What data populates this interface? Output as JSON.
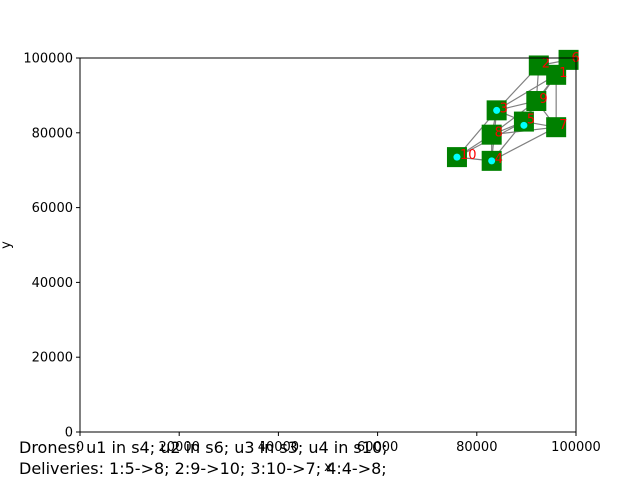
{
  "chart_data": {
    "type": "scatter",
    "xlabel": "x",
    "ylabel": "y",
    "xlim": [
      0,
      100000
    ],
    "ylim": [
      0,
      100000
    ],
    "xticks": [
      "0",
      "20000",
      "40000",
      "60000",
      "80000",
      "100000"
    ],
    "yticks": [
      "0",
      "20000",
      "40000",
      "60000",
      "80000",
      "100000"
    ],
    "grid": false,
    "colors": {
      "station": "#008000",
      "edge": "#808080",
      "drone": "#00ffff",
      "label_red": "#ff0000",
      "label_gray": "#808080",
      "marker_yellow": "#ffff00"
    },
    "stations": [
      {
        "x": 76000,
        "y": 73500,
        "label": "10"
      },
      {
        "x": 83000,
        "y": 72500,
        "label": "4"
      },
      {
        "x": 83000,
        "y": 79500,
        "label": "8"
      },
      {
        "x": 84000,
        "y": 86000,
        "label": "3"
      },
      {
        "x": 89500,
        "y": 83000,
        "label": "5"
      },
      {
        "x": 92000,
        "y": 88500,
        "label": "9"
      },
      {
        "x": 92500,
        "y": 98000,
        "label": "2"
      },
      {
        "x": 96000,
        "y": 81500,
        "label": "7"
      },
      {
        "x": 96000,
        "y": 95500,
        "label": "1"
      },
      {
        "x": 98500,
        "y": 99500,
        "label": "6"
      }
    ],
    "edges": [
      [
        0,
        1
      ],
      [
        0,
        2
      ],
      [
        0,
        3
      ],
      [
        0,
        4
      ],
      [
        1,
        2
      ],
      [
        1,
        3
      ],
      [
        1,
        4
      ],
      [
        1,
        7
      ],
      [
        2,
        3
      ],
      [
        2,
        4
      ],
      [
        2,
        5
      ],
      [
        3,
        4
      ],
      [
        3,
        5
      ],
      [
        3,
        6
      ],
      [
        4,
        5
      ],
      [
        4,
        7
      ],
      [
        5,
        6
      ],
      [
        5,
        8
      ],
      [
        5,
        9
      ],
      [
        5,
        7
      ],
      [
        6,
        8
      ],
      [
        6,
        9
      ],
      [
        7,
        8
      ],
      [
        8,
        9
      ],
      [
        3,
        8
      ],
      [
        2,
        7
      ],
      [
        4,
        8
      ]
    ],
    "drones": [
      {
        "x": 76000,
        "y": 73500
      },
      {
        "x": 83000,
        "y": 72500
      },
      {
        "x": 84000,
        "y": 86000
      },
      {
        "x": 89500,
        "y": 82000
      }
    ]
  },
  "caption": {
    "line1": "Drones: u1 in s4; u2 in s6; u3 in s3; u4 in s10;",
    "line2": "Deliveries: 1:5->8; 2:9->10; 3:10->7; 4:4->8;"
  }
}
